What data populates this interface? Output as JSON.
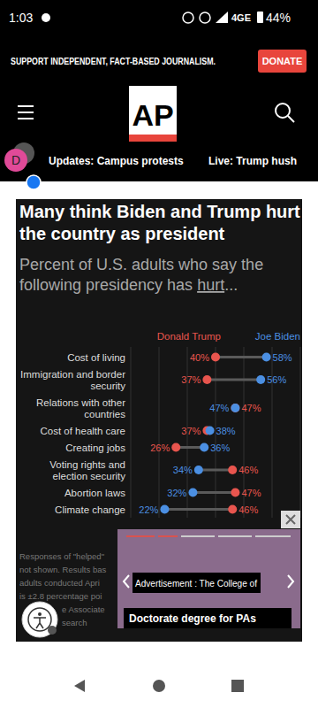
{
  "status_bar": {
    "time": "1:03",
    "network": "4GE",
    "battery": "44%"
  },
  "banner": {
    "text": "SUPPORT INDEPENDENT, FACT-BASED JOURNALISM.",
    "button": "DONATE"
  },
  "header": {
    "logo": "AP"
  },
  "nav": {
    "avatar": "D",
    "links": [
      "Updates: Campus protests",
      "Live: Trump hush"
    ]
  },
  "chart_data": {
    "type": "dot",
    "title": "Many think Biden and Trump hurt the country as president",
    "subtitle": "Percent of U.S. adults who say the following presidency has hurt...",
    "orientation": "horizontal",
    "legend": "top",
    "grid": true,
    "tick_labels": false,
    "data_labels": true,
    "categories": [
      "Cost of living",
      "Immigration and border security",
      "Relations with other countries",
      "Cost of health care",
      "Creating jobs",
      "Voting rights and election security",
      "Abortion laws",
      "Climate change"
    ],
    "xlim": [
      10,
      70
    ],
    "xticks": [
      10,
      20,
      30,
      40,
      50,
      60,
      70
    ],
    "series": [
      {
        "name": "Donald Trump",
        "color": "#e8554e",
        "marker": "circle",
        "values": [
          40,
          37,
          47,
          37,
          26,
          46,
          47,
          46
        ],
        "value_labels": [
          "40%",
          "37%",
          "47%",
          "37%",
          "26%",
          "46%",
          "47%",
          "46%"
        ]
      },
      {
        "name": "Joe Biden",
        "color": "#4b8fe2",
        "marker": "circle",
        "values": [
          58,
          56,
          47,
          38,
          36,
          34,
          32,
          22
        ],
        "value_labels": [
          "58%",
          "56%",
          "47%",
          "38%",
          "36%",
          "34%",
          "32%",
          "22%"
        ]
      }
    ]
  },
  "footnote_visible": [
    "Responses of \"helped\"",
    "not shown. Results bas",
    "adults conducted Apri",
    "is ±2.8 percentage poi",
    "e Associate",
    "search"
  ],
  "ad": {
    "label": "Advertisement : The College of",
    "headline": "Doctorate degree for PAs"
  }
}
